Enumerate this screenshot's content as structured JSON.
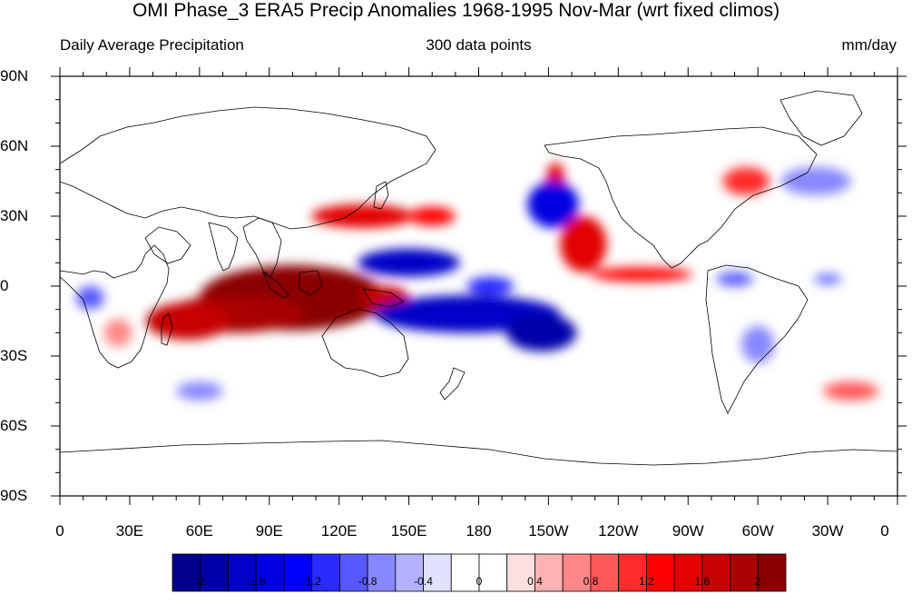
{
  "title": "OMI Phase_3 ERA5 Precip Anomalies 1968-1995 Nov-Mar (wrt fixed climos)",
  "subtitle_left": "Daily Average Precipitation",
  "subtitle_center": "300 data points",
  "subtitle_right": "mm/day",
  "lat_labels": [
    "90N",
    "60N",
    "30N",
    "0",
    "30S",
    "60S",
    "90S"
  ],
  "lon_labels": [
    "0",
    "30E",
    "60E",
    "90E",
    "120E",
    "150E",
    "180",
    "150W",
    "120W",
    "90W",
    "60W",
    "30W",
    "0"
  ],
  "colorbar": {
    "colors": [
      "#00008a",
      "#0000a8",
      "#0000c6",
      "#0000e2",
      "#0000ff",
      "#2b2bff",
      "#5858ff",
      "#8787ff",
      "#b2b2ff",
      "#e0e0ff",
      "#ffffff",
      "#ffffff",
      "#ffe0e0",
      "#ffb2b2",
      "#ff8787",
      "#ff5858",
      "#ff2b2b",
      "#ff0000",
      "#e20000",
      "#c60000",
      "#a80000",
      "#8a0000"
    ],
    "labels": [
      "-2",
      "-1.6",
      "-1.2",
      "-0.8",
      "-0.4",
      "0",
      "0.4",
      "0.8",
      "1.2",
      "1.6",
      "2"
    ]
  },
  "anomalies": [
    {
      "lon": 100,
      "lat": -5,
      "w": 40,
      "h": 14,
      "v": 2.2
    },
    {
      "lon": 75,
      "lat": -12,
      "w": 30,
      "h": 8,
      "v": 1.8
    },
    {
      "lon": 55,
      "lat": -15,
      "w": 18,
      "h": 8,
      "v": 1.6
    },
    {
      "lon": 115,
      "lat": -5,
      "w": 12,
      "h": 8,
      "v": 2.0
    },
    {
      "lon": 140,
      "lat": -5,
      "w": 10,
      "h": 5,
      "v": 1.6
    },
    {
      "lon": 130,
      "lat": 30,
      "w": 22,
      "h": 5,
      "v": 1.4
    },
    {
      "lon": 160,
      "lat": 30,
      "w": 10,
      "h": 4,
      "v": 1.2
    },
    {
      "lon": 225,
      "lat": 18,
      "w": 10,
      "h": 12,
      "v": 1.4
    },
    {
      "lon": 250,
      "lat": 5,
      "w": 22,
      "h": 3,
      "v": 1.2
    },
    {
      "lon": 213,
      "lat": 45,
      "w": 4,
      "h": 8,
      "v": 1.4
    },
    {
      "lon": 295,
      "lat": 45,
      "w": 10,
      "h": 6,
      "v": 1.0
    },
    {
      "lon": 150,
      "lat": 10,
      "w": 22,
      "h": 6,
      "v": -1.8
    },
    {
      "lon": 185,
      "lat": 0,
      "w": 10,
      "h": 4,
      "v": -1.2
    },
    {
      "lon": 175,
      "lat": -12,
      "w": 40,
      "h": 8,
      "v": -1.8
    },
    {
      "lon": 207,
      "lat": -20,
      "w": 15,
      "h": 8,
      "v": -2.0
    },
    {
      "lon": 212,
      "lat": 35,
      "w": 11,
      "h": 10,
      "v": -1.6
    },
    {
      "lon": 290,
      "lat": 3,
      "w": 8,
      "h": 3,
      "v": -1.0
    },
    {
      "lon": 330,
      "lat": 3,
      "w": 6,
      "h": 2,
      "v": -1.0
    },
    {
      "lon": 13,
      "lat": -5,
      "w": 6,
      "h": 5,
      "v": -1.0
    },
    {
      "lon": 60,
      "lat": -45,
      "w": 10,
      "h": 4,
      "v": -0.8
    },
    {
      "lon": 300,
      "lat": -25,
      "w": 7,
      "h": 8,
      "v": -0.8
    },
    {
      "lon": 325,
      "lat": 45,
      "w": 15,
      "h": 6,
      "v": -0.8
    },
    {
      "lon": 340,
      "lat": -45,
      "w": 12,
      "h": 4,
      "v": 0.8
    },
    {
      "lon": 25,
      "lat": -20,
      "w": 6,
      "h": 6,
      "v": 0.6
    }
  ]
}
